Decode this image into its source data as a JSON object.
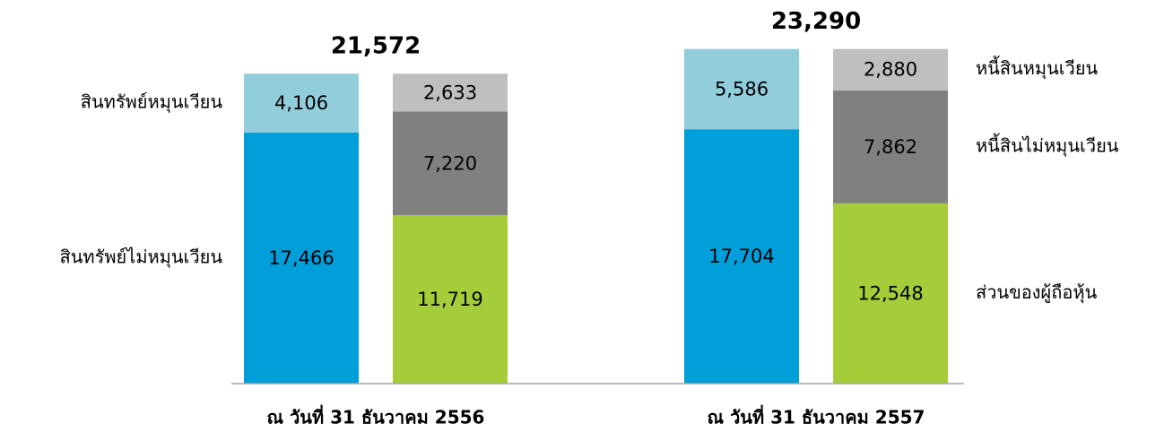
{
  "chart_data": {
    "type": "stacked-bar",
    "categories": [
      "ณ วันที่ 31 ธันวาคม 2556",
      "ณ วันที่ 31 ธันวาคม 2557"
    ],
    "totals": [
      21572,
      23290
    ],
    "total_labels": [
      "21,572",
      "23,290"
    ],
    "ylim": [
      0,
      26700
    ],
    "stacks": [
      {
        "series": [
          {
            "name": "สินทรัพย์ไม่หมุนเวียน",
            "color": "#009fda",
            "values": [
              17466,
              17704
            ],
            "value_labels": [
              "17,466",
              "17,704"
            ]
          },
          {
            "name": "สินทรัพย์หมุนเวียน",
            "color": "#92cddc",
            "values": [
              4106,
              5586
            ],
            "value_labels": [
              "4,106",
              "5,586"
            ]
          }
        ]
      },
      {
        "series": [
          {
            "name": "ส่วนของผู้ถือหุ้น",
            "color": "#a5cd39",
            "values": [
              11719,
              12548
            ],
            "value_labels": [
              "11,719",
              "12,548"
            ]
          },
          {
            "name": "หนี้สินไม่หมุนเวียน",
            "color": "#808080",
            "values": [
              7220,
              7862
            ],
            "value_labels": [
              "7,220",
              "7,862"
            ]
          },
          {
            "name": "หนี้สินหมุนเวียน",
            "color": "#bfbfbf",
            "values": [
              2633,
              2880
            ],
            "value_labels": [
              "2,633",
              "2,880"
            ]
          }
        ]
      }
    ]
  }
}
